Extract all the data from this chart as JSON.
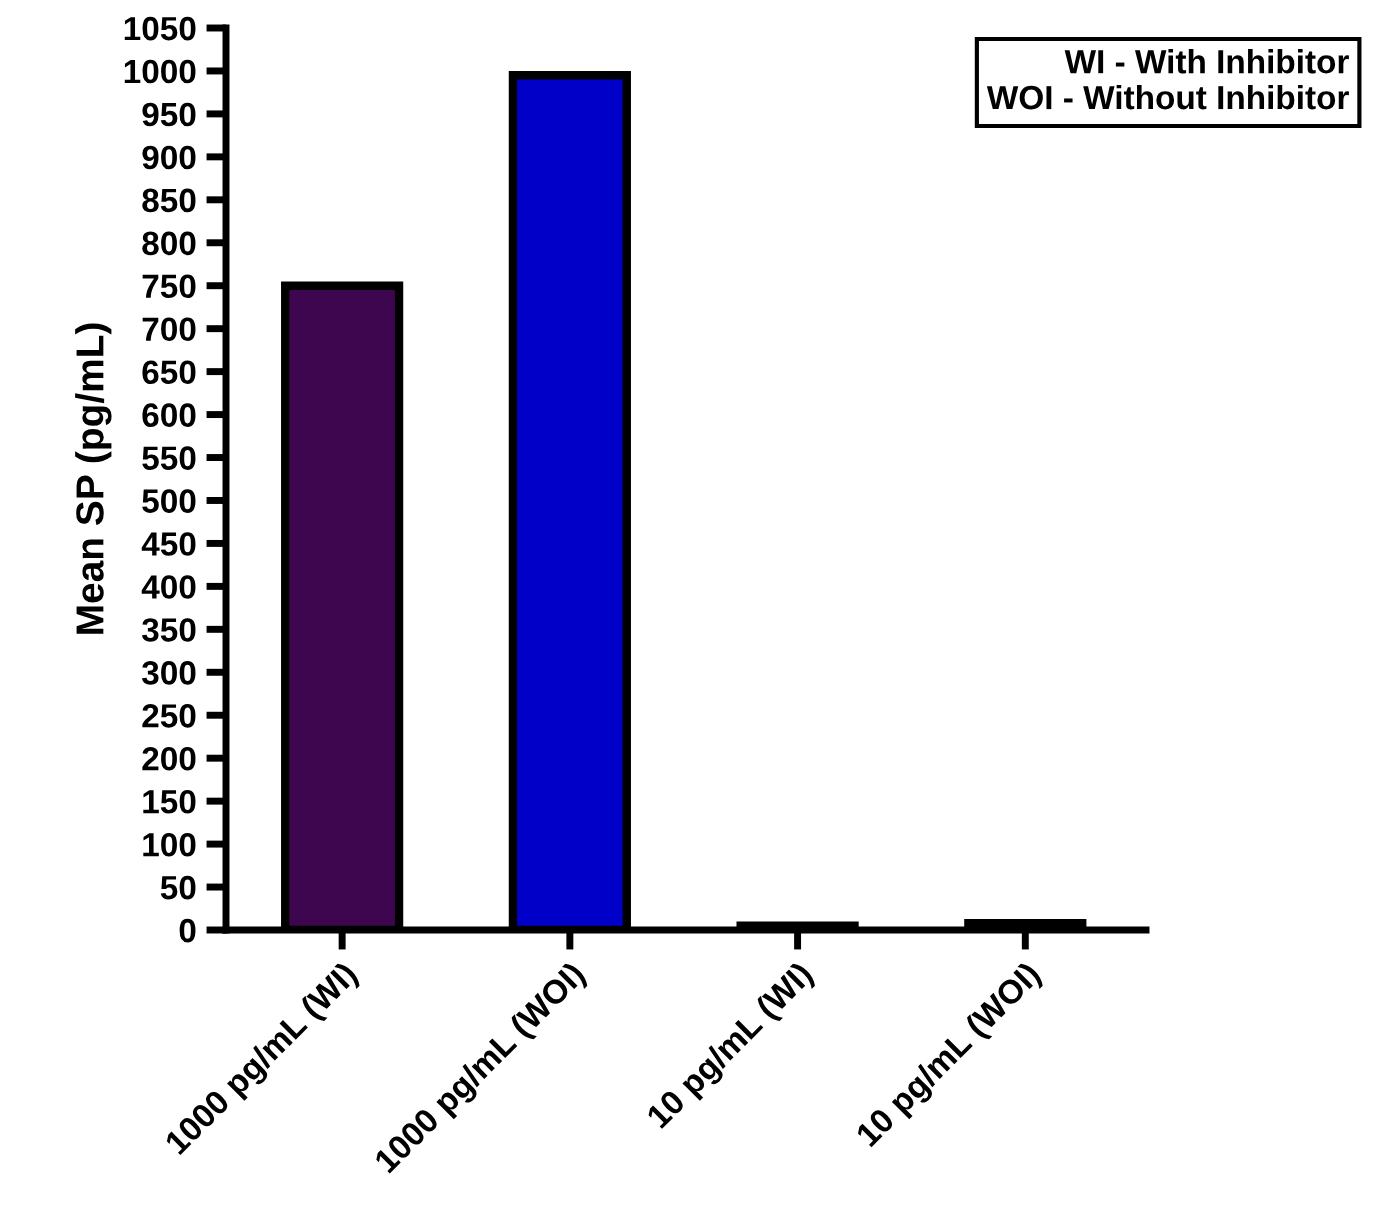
{
  "chart_data": {
    "type": "bar",
    "ylabel": "Mean SP (pg/mL)",
    "categories": [
      "1000 pg/mL (WI)",
      "1000 pg/mL (WOI)",
      "10 pg/mL (WI)",
      "10 pg/mL (WOI)"
    ],
    "values": [
      750,
      995,
      5,
      8
    ],
    "colors": [
      "#3f0650",
      "#0000c8",
      "#3f0650",
      "#0000c8"
    ],
    "ylim": [
      0,
      1050
    ],
    "yticks": [
      0,
      50,
      100,
      150,
      200,
      250,
      300,
      350,
      400,
      450,
      500,
      550,
      600,
      650,
      700,
      750,
      800,
      850,
      900,
      950,
      1000,
      1050
    ],
    "grid": false,
    "legend": false,
    "annotations": [
      "WI - With Inhibitor\nWOI - Without Inhibitor"
    ]
  }
}
